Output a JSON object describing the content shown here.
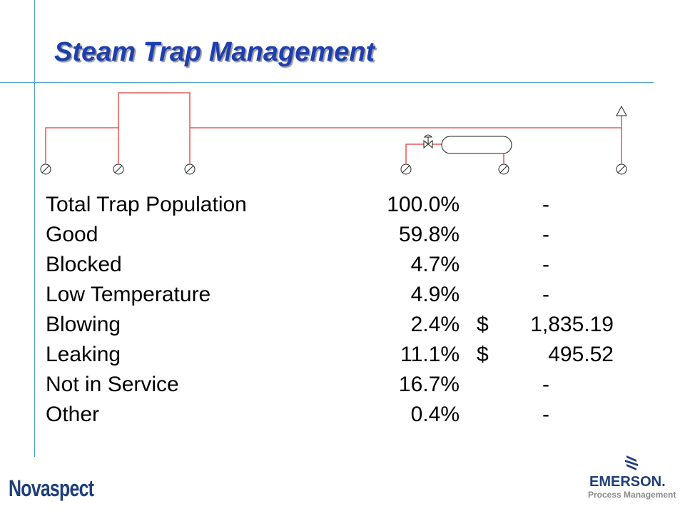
{
  "slide": {
    "title": "Steam Trap Management"
  },
  "trap_table": {
    "rows": [
      {
        "label": "Total Trap Population",
        "percent": "100.0%",
        "currency": "",
        "amount": "-"
      },
      {
        "label": "Good",
        "percent": "59.8%",
        "currency": "",
        "amount": "-"
      },
      {
        "label": "Blocked",
        "percent": "4.7%",
        "currency": "",
        "amount": "-"
      },
      {
        "label": "Low Temperature",
        "percent": "4.9%",
        "currency": "",
        "amount": "-"
      },
      {
        "label": "Blowing",
        "percent": "2.4%",
        "currency": "$",
        "amount": "1,835.19"
      },
      {
        "label": "Leaking",
        "percent": "11.1%",
        "currency": "$",
        "amount": "495.52"
      },
      {
        "label": "Not in Service",
        "percent": "16.7%",
        "currency": "",
        "amount": "-"
      },
      {
        "label": "Other",
        "percent": "0.4%",
        "currency": "",
        "amount": "-"
      }
    ]
  },
  "logos": {
    "left": "Novaspect",
    "right_name": "EMERSON.",
    "right_sub": "Process Management"
  },
  "colors": {
    "title": "#1f3fae",
    "pipe": "#e03a3a",
    "guide": "#4fa3c7",
    "logo_blue": "#1e3f7c"
  },
  "icons": {
    "trap": "trap-gauge-icon",
    "valve": "valve-icon",
    "vessel": "tank-icon",
    "vent": "vent-triangle-icon"
  }
}
